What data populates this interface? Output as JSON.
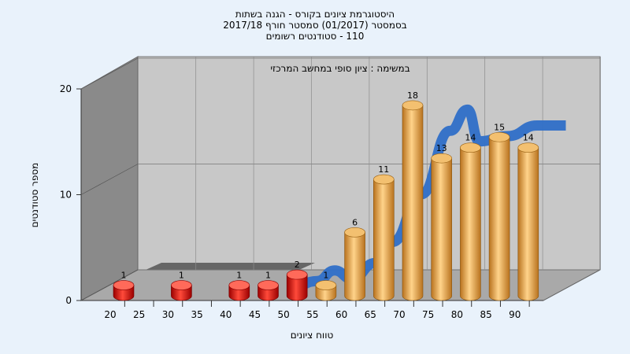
{
  "titles": {
    "line1": "היסטוגרמת ציונים בקורס - הגנה בשתות",
    "line2": "בסמסטר  (01/2017)  סמסטר חורף 2017/18",
    "line3": "110 - סטודנטים רשומים"
  },
  "colors": {
    "background": "#e9f2fb",
    "wall_back": "#c8c8c8",
    "wall_left": "#8a8a8a",
    "floor": "#a9a9a9",
    "bar_fail": "#e01010",
    "bar_pass": "#e8a040",
    "curve": "#2f6fc8"
  },
  "chart_data": {
    "type": "bar",
    "title": "היסטוגרמת ציונים בקורס - הגנה בשתות",
    "annotation": "במשימה : ציון סופי במחשב המרכזי",
    "xlabel": "טווח ציונים",
    "ylabel": "מספר סטודנטים",
    "ylim": [
      0,
      20
    ],
    "yticks": [
      0,
      10,
      20
    ],
    "xticks": [
      "20",
      "25",
      "30",
      "35",
      "40",
      "45",
      "50",
      "55",
      "60",
      "65",
      "70",
      "75",
      "80",
      "85",
      "90"
    ],
    "categories": [
      "20",
      "30",
      "40",
      "45",
      "50",
      "55",
      "60",
      "65",
      "70",
      "75",
      "80",
      "85",
      "90"
    ],
    "values": [
      1,
      1,
      1,
      1,
      2,
      1,
      6,
      11,
      18,
      13,
      14,
      15,
      14
    ],
    "failing_threshold": 55,
    "curve": {
      "type": "smoothed-distribution",
      "x": [
        48,
        52,
        55,
        58,
        62,
        65,
        70,
        75,
        78,
        80,
        85,
        90,
        95
      ],
      "y": [
        0.3,
        0.8,
        1.8,
        1.0,
        2.5,
        4.5,
        9.0,
        15.0,
        17.0,
        14.0,
        14.5,
        15.5,
        15.5
      ]
    },
    "grid": true,
    "legend": "none"
  }
}
